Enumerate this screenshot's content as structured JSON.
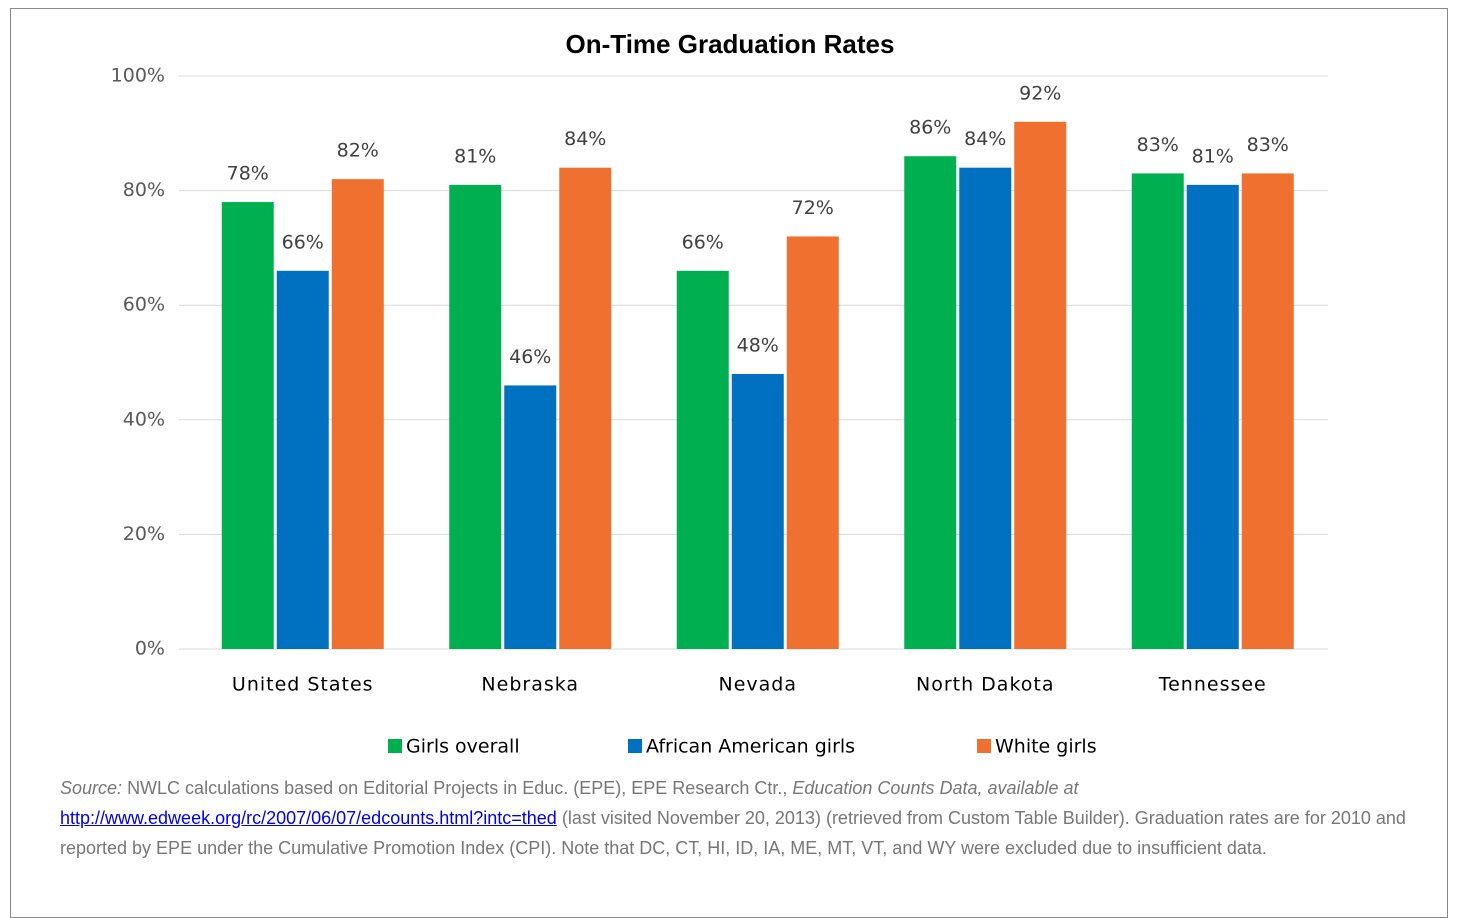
{
  "chart_data": {
    "type": "bar",
    "title": "On-Time Graduation Rates",
    "categories": [
      "United States",
      "Nebraska",
      "Nevada",
      "North Dakota",
      "Tennessee"
    ],
    "series": [
      {
        "name": "Girls overall",
        "color": "#00b050",
        "values": [
          78,
          81,
          66,
          86,
          83
        ],
        "value_labels": [
          "78%",
          "81%",
          "66%",
          "86%",
          "83%"
        ]
      },
      {
        "name": "African American girls",
        "color": "#0070c0",
        "values": [
          66,
          46,
          48,
          84,
          81
        ],
        "value_labels": [
          "66%",
          "46%",
          "48%",
          "84%",
          "81%"
        ]
      },
      {
        "name": "White girls",
        "color": "#f07030",
        "values": [
          82,
          84,
          72,
          92,
          83
        ],
        "value_labels": [
          "82%",
          "84%",
          "72%",
          "92%",
          "83%"
        ]
      }
    ],
    "ylim": [
      0,
      100
    ],
    "yticks": [
      {
        "value": 0,
        "label": "0%"
      },
      {
        "value": 20,
        "label": "20%"
      },
      {
        "value": 40,
        "label": "40%"
      },
      {
        "value": 60,
        "label": "60%"
      },
      {
        "value": 80,
        "label": "80%"
      },
      {
        "value": 100,
        "label": "100%"
      }
    ],
    "grid": true,
    "legend": "bottom"
  },
  "footnote": {
    "source_label": "Source:",
    "text_1": "NWLC calculations based on Editorial Projects in Educ. (EPE), EPE Research Ctr.,",
    "italic": "Education Counts Data, available at",
    "link": "http://www.edweek.org/rc/2007/06/07/edcounts.html?intc=thed",
    "text_2": "(last visited November 20, 2013) (retrieved from Custom Table Builder). Graduation rates are for 2010 and reported by EPE under the Cumulative Promotion Index (CPI). Note that DC, CT, HI, ID, IA, ME, MT, VT, and WY were excluded due to insufficient data."
  }
}
